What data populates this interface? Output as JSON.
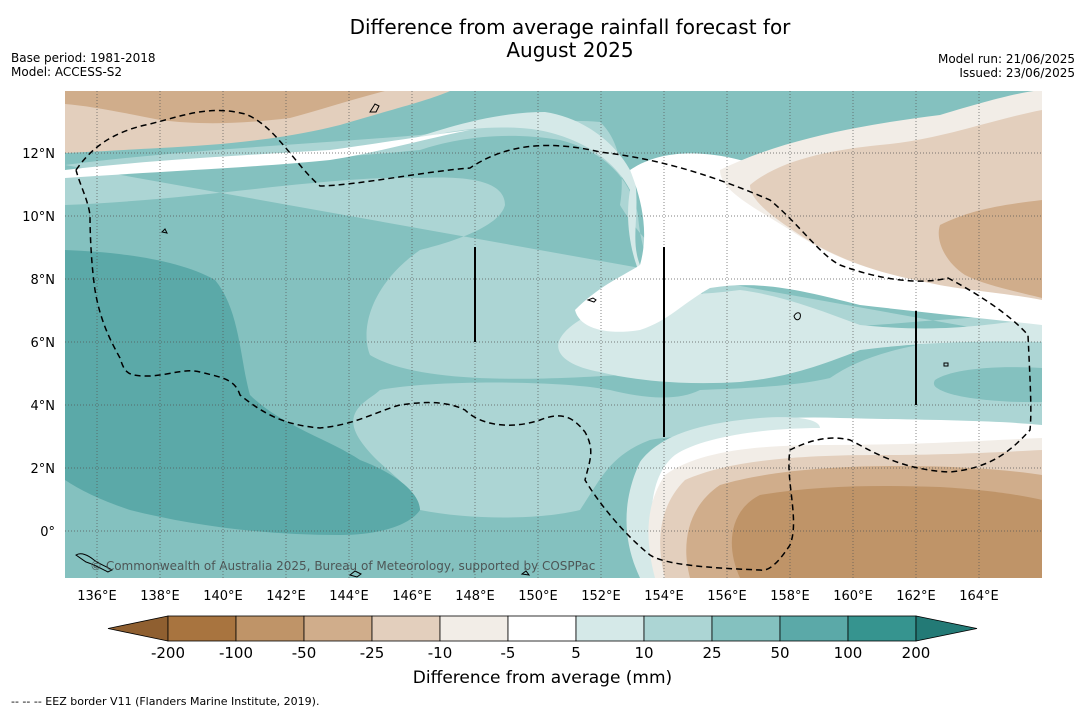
{
  "title_line1": "Difference from average rainfall forecast for",
  "title_line2": "August 2025",
  "base_period": "Base period: 1981-2018",
  "model": "Model: ACCESS-S2",
  "model_run": "Model run: 21/06/2025",
  "issued": "Issued: 23/06/2025",
  "copyright": "© Commonwealth of Australia 2025, Bureau of Meteorology, supported by COSPPac",
  "lon_ticks": [
    "136°E",
    "138°E",
    "140°E",
    "142°E",
    "144°E",
    "146°E",
    "148°E",
    "150°E",
    "152°E",
    "154°E",
    "156°E",
    "158°E",
    "160°E",
    "162°E",
    "164°E"
  ],
  "lat_ticks": [
    "12°N",
    "10°N",
    "8°N",
    "6°N",
    "4°N",
    "2°N",
    "0°"
  ],
  "colorbar": {
    "labels": [
      "-200",
      "-100",
      "-50",
      "-25",
      "-10",
      "-5",
      "5",
      "10",
      "25",
      "50",
      "100",
      "200"
    ],
    "colors": [
      "#a8743f",
      "#bf9468",
      "#d0ad8b",
      "#e3cfbd",
      "#f2ede7",
      "#ffffff",
      "#d5e9e8",
      "#acd5d4",
      "#84c1bf",
      "#5ba9a8",
      "#36948f"
    ],
    "under_color": "#8f5f30",
    "over_color": "#237a76",
    "title": "Difference from average (mm)"
  },
  "legend_note": "--  --  -- EEZ border V11 (Flanders Marine Institute, 2019)."
}
